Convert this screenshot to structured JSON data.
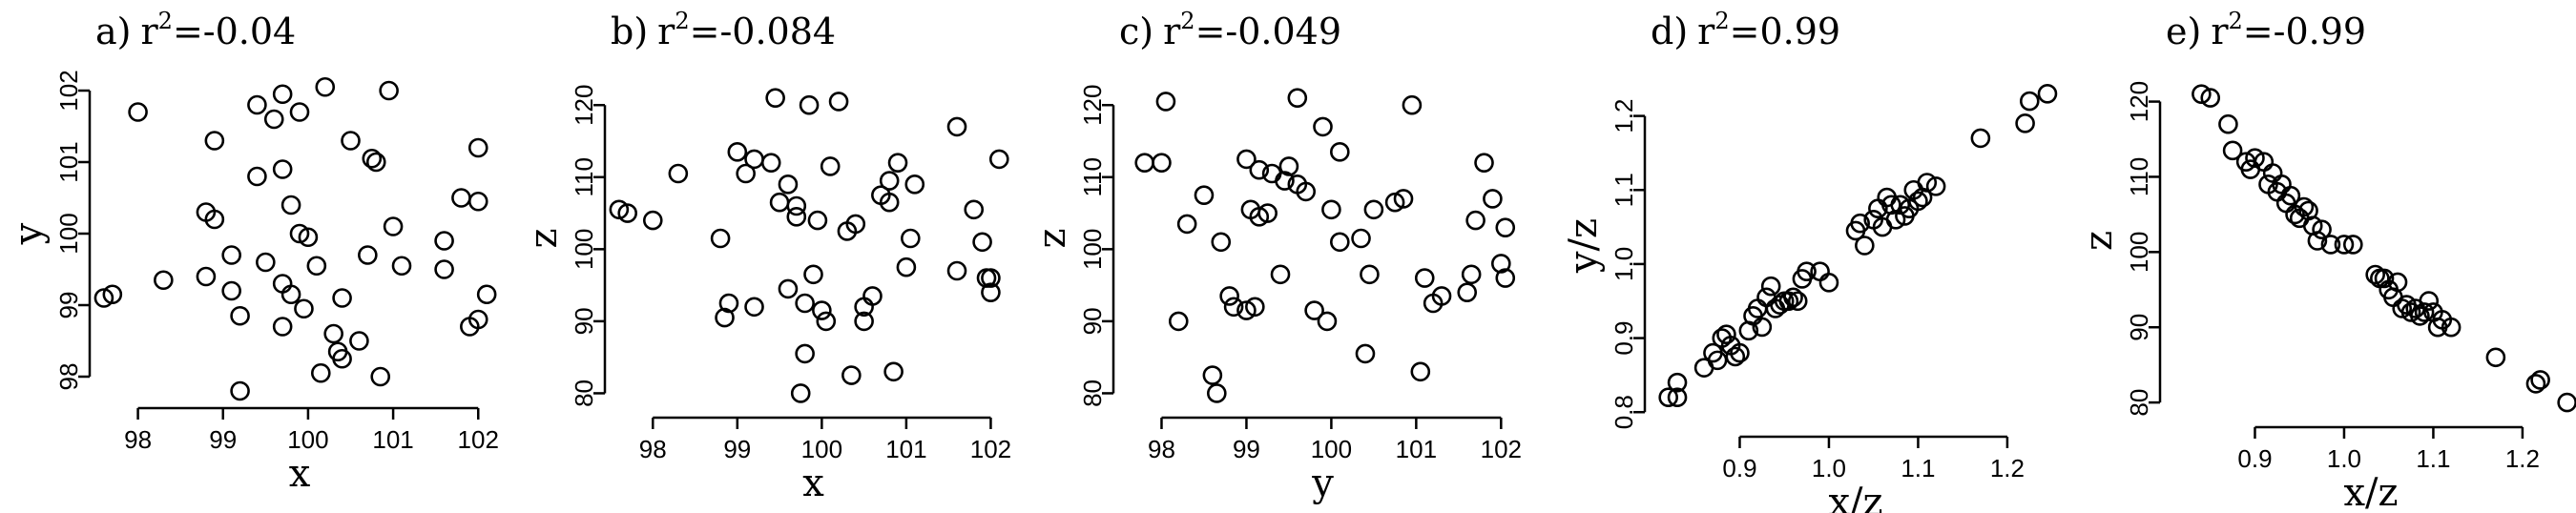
{
  "figure_text": {
    "panels": [
      {
        "letter": "a)",
        "r_label": "r",
        "sup": "2",
        "r_value": "=-0.04"
      },
      {
        "letter": "b)",
        "r_label": "r",
        "sup": "2",
        "r_value": "=-0.084"
      },
      {
        "letter": "c)",
        "r_label": "r",
        "sup": "2",
        "r_value": "=-0.049"
      },
      {
        "letter": "d)",
        "r_label": "r",
        "sup": "2",
        "r_value": "=0.99"
      },
      {
        "letter": "e)",
        "r_label": "r",
        "sup": "2",
        "r_value": "=-0.99"
      }
    ]
  },
  "chart_data": [
    {
      "type": "scatter",
      "title": "a) r2=-0.04",
      "xlabel": "x",
      "ylabel": "y",
      "xlim": [
        97.5,
        102.3
      ],
      "ylim": [
        97.8,
        102.2
      ],
      "xticks": [
        "98",
        "99",
        "100",
        "101",
        "102"
      ],
      "yticks": [
        "98",
        "99",
        "100",
        "101",
        "102"
      ],
      "points": [
        [
          97.6,
          99.1
        ],
        [
          97.7,
          99.15
        ],
        [
          98.0,
          101.7
        ],
        [
          98.3,
          99.35
        ],
        [
          98.8,
          99.4
        ],
        [
          98.8,
          100.3
        ],
        [
          98.9,
          100.2
        ],
        [
          98.9,
          101.3
        ],
        [
          99.1,
          99.7
        ],
        [
          99.1,
          99.2
        ],
        [
          99.2,
          98.85
        ],
        [
          99.2,
          97.8
        ],
        [
          99.4,
          101.8
        ],
        [
          99.4,
          100.8
        ],
        [
          99.5,
          99.6
        ],
        [
          99.6,
          101.6
        ],
        [
          99.7,
          101.95
        ],
        [
          99.7,
          100.9
        ],
        [
          99.7,
          99.3
        ],
        [
          99.7,
          98.7
        ],
        [
          99.8,
          100.4
        ],
        [
          99.8,
          99.15
        ],
        [
          99.9,
          101.7
        ],
        [
          99.9,
          100.0
        ],
        [
          99.95,
          98.95
        ],
        [
          100.0,
          99.95
        ],
        [
          100.1,
          99.55
        ],
        [
          100.15,
          98.05
        ],
        [
          100.2,
          102.05
        ],
        [
          100.3,
          98.6
        ],
        [
          100.35,
          98.35
        ],
        [
          100.4,
          98.25
        ],
        [
          100.4,
          99.1
        ],
        [
          100.5,
          101.3
        ],
        [
          100.6,
          98.5
        ],
        [
          100.75,
          101.05
        ],
        [
          100.7,
          99.7
        ],
        [
          100.8,
          101.0
        ],
        [
          100.85,
          98.0
        ],
        [
          100.95,
          102.0
        ],
        [
          101.0,
          100.1
        ],
        [
          101.1,
          99.55
        ],
        [
          101.6,
          99.9
        ],
        [
          101.6,
          99.5
        ],
        [
          101.8,
          100.5
        ],
        [
          101.9,
          98.7
        ],
        [
          102.0,
          100.45
        ],
        [
          102.0,
          101.2
        ],
        [
          102.0,
          98.8
        ],
        [
          102.1,
          99.15
        ]
      ]
    },
    {
      "type": "scatter",
      "title": "b) r2=-0.084",
      "xlabel": "x",
      "ylabel": "z",
      "xlim": [
        97.5,
        102.3
      ],
      "ylim": [
        79,
        124
      ],
      "xticks": [
        "98",
        "99",
        "100",
        "101",
        "102"
      ],
      "yticks": [
        "80",
        "90",
        "100",
        "110",
        "120"
      ],
      "points": [
        [
          97.6,
          105.5
        ],
        [
          97.7,
          105.0
        ],
        [
          98.0,
          104.0
        ],
        [
          98.3,
          110.5
        ],
        [
          98.8,
          101.5
        ],
        [
          98.85,
          90.5
        ],
        [
          98.9,
          92.5
        ],
        [
          99.0,
          113.5
        ],
        [
          99.1,
          110.5
        ],
        [
          99.2,
          112.5
        ],
        [
          99.2,
          92.0
        ],
        [
          99.4,
          112.0
        ],
        [
          99.45,
          121.0
        ],
        [
          99.5,
          106.5
        ],
        [
          99.6,
          109.0
        ],
        [
          99.6,
          94.5
        ],
        [
          99.7,
          104.5
        ],
        [
          99.7,
          106.0
        ],
        [
          99.75,
          80.0
        ],
        [
          99.8,
          85.5
        ],
        [
          99.8,
          92.5
        ],
        [
          99.85,
          120.0
        ],
        [
          99.9,
          96.5
        ],
        [
          99.95,
          104.0
        ],
        [
          100.0,
          91.5
        ],
        [
          100.05,
          90.0
        ],
        [
          100.1,
          111.5
        ],
        [
          100.2,
          120.5
        ],
        [
          100.3,
          102.5
        ],
        [
          100.35,
          82.5
        ],
        [
          100.4,
          103.5
        ],
        [
          100.5,
          92.0
        ],
        [
          100.5,
          90.0
        ],
        [
          100.6,
          93.5
        ],
        [
          100.7,
          107.5
        ],
        [
          100.8,
          109.5
        ],
        [
          100.8,
          106.5
        ],
        [
          100.85,
          83.0
        ],
        [
          100.9,
          112.0
        ],
        [
          101.0,
          97.5
        ],
        [
          101.05,
          101.5
        ],
        [
          101.1,
          109.0
        ],
        [
          101.6,
          97.0
        ],
        [
          101.6,
          117.0
        ],
        [
          101.8,
          105.5
        ],
        [
          101.9,
          101.0
        ],
        [
          101.95,
          96.0
        ],
        [
          102.0,
          94.0
        ],
        [
          102.0,
          96.0
        ],
        [
          102.1,
          112.5
        ]
      ]
    },
    {
      "type": "scatter",
      "title": "c) r2=-0.049",
      "xlabel": "y",
      "ylabel": "z",
      "xlim": [
        97.5,
        102.3
      ],
      "ylim": [
        79,
        124
      ],
      "xticks": [
        "98",
        "99",
        "100",
        "101",
        "102"
      ],
      "yticks": [
        "80",
        "90",
        "100",
        "110",
        "120"
      ],
      "points": [
        [
          97.8,
          112.0
        ],
        [
          98.0,
          112.0
        ],
        [
          98.05,
          120.5
        ],
        [
          98.2,
          90.0
        ],
        [
          98.3,
          103.5
        ],
        [
          98.5,
          107.5
        ],
        [
          98.6,
          82.5
        ],
        [
          98.65,
          80.0
        ],
        [
          98.7,
          101.0
        ],
        [
          98.8,
          93.5
        ],
        [
          98.85,
          92.0
        ],
        [
          99.0,
          91.5
        ],
        [
          99.0,
          112.5
        ],
        [
          99.05,
          105.5
        ],
        [
          99.1,
          92.0
        ],
        [
          99.15,
          111.0
        ],
        [
          99.15,
          104.5
        ],
        [
          99.25,
          105.0
        ],
        [
          99.3,
          110.5
        ],
        [
          99.4,
          96.5
        ],
        [
          99.45,
          109.5
        ],
        [
          99.5,
          111.5
        ],
        [
          99.6,
          121.0
        ],
        [
          99.6,
          109.0
        ],
        [
          99.7,
          108.0
        ],
        [
          99.8,
          91.5
        ],
        [
          99.9,
          117.0
        ],
        [
          99.95,
          90.0
        ],
        [
          100.0,
          105.5
        ],
        [
          100.1,
          101.0
        ],
        [
          100.1,
          113.5
        ],
        [
          100.35,
          101.5
        ],
        [
          100.4,
          85.5
        ],
        [
          100.45,
          96.5
        ],
        [
          100.5,
          105.5
        ],
        [
          100.75,
          106.5
        ],
        [
          100.85,
          107.0
        ],
        [
          100.95,
          120.0
        ],
        [
          101.05,
          83.0
        ],
        [
          101.1,
          96.0
        ],
        [
          101.2,
          92.5
        ],
        [
          101.3,
          93.5
        ],
        [
          101.6,
          94.0
        ],
        [
          101.65,
          96.5
        ],
        [
          101.7,
          104.0
        ],
        [
          101.8,
          112.0
        ],
        [
          101.9,
          107.0
        ],
        [
          102.0,
          98.0
        ],
        [
          102.05,
          103.0
        ],
        [
          102.05,
          96.0
        ]
      ]
    },
    {
      "type": "scatter",
      "title": "d) r2=0.99",
      "xlabel": "x/z",
      "ylabel": "y/z",
      "xlim": [
        0.8,
        1.26
      ],
      "ylim": [
        0.79,
        1.26
      ],
      "xticks": [
        "0.9",
        "1.0",
        "1.1",
        "1.2"
      ],
      "yticks": [
        "0.8",
        "0.9",
        "1.0",
        "1.1",
        "1.2"
      ],
      "points": [
        [
          0.82,
          0.82
        ],
        [
          0.83,
          0.84
        ],
        [
          0.83,
          0.82
        ],
        [
          0.86,
          0.86
        ],
        [
          0.87,
          0.88
        ],
        [
          0.875,
          0.87
        ],
        [
          0.88,
          0.9
        ],
        [
          0.885,
          0.905
        ],
        [
          0.89,
          0.89
        ],
        [
          0.895,
          0.875
        ],
        [
          0.9,
          0.88
        ],
        [
          0.91,
          0.91
        ],
        [
          0.915,
          0.93
        ],
        [
          0.92,
          0.94
        ],
        [
          0.925,
          0.915
        ],
        [
          0.93,
          0.955
        ],
        [
          0.935,
          0.97
        ],
        [
          0.94,
          0.94
        ],
        [
          0.945,
          0.945
        ],
        [
          0.95,
          0.95
        ],
        [
          0.955,
          0.95
        ],
        [
          0.96,
          0.955
        ],
        [
          0.965,
          0.95
        ],
        [
          0.97,
          0.98
        ],
        [
          0.975,
          0.99
        ],
        [
          0.99,
          0.99
        ],
        [
          1.0,
          0.975
        ],
        [
          1.03,
          1.045
        ],
        [
          1.035,
          1.055
        ],
        [
          1.04,
          1.025
        ],
        [
          1.05,
          1.06
        ],
        [
          1.055,
          1.075
        ],
        [
          1.06,
          1.05
        ],
        [
          1.065,
          1.09
        ],
        [
          1.07,
          1.08
        ],
        [
          1.075,
          1.06
        ],
        [
          1.08,
          1.08
        ],
        [
          1.085,
          1.065
        ],
        [
          1.09,
          1.075
        ],
        [
          1.095,
          1.1
        ],
        [
          1.1,
          1.085
        ],
        [
          1.105,
          1.09
        ],
        [
          1.11,
          1.11
        ],
        [
          1.12,
          1.105
        ],
        [
          1.17,
          1.17
        ],
        [
          1.22,
          1.19
        ],
        [
          1.225,
          1.22
        ],
        [
          1.245,
          1.23
        ]
      ]
    },
    {
      "type": "scatter",
      "title": "e) r2=-0.99",
      "xlabel": "x/z",
      "ylabel": "z",
      "xlim": [
        0.8,
        1.26
      ],
      "ylim": [
        79,
        124
      ],
      "xticks": [
        "0.9",
        "1.0",
        "1.1",
        "1.2"
      ],
      "yticks": [
        "80",
        "90",
        "100",
        "110",
        "120"
      ],
      "points": [
        [
          0.84,
          121.0
        ],
        [
          0.85,
          120.5
        ],
        [
          0.87,
          117.0
        ],
        [
          0.875,
          113.5
        ],
        [
          0.89,
          112.0
        ],
        [
          0.895,
          111.0
        ],
        [
          0.9,
          112.5
        ],
        [
          0.91,
          112.0
        ],
        [
          0.915,
          109.0
        ],
        [
          0.92,
          110.5
        ],
        [
          0.925,
          108.0
        ],
        [
          0.93,
          109.0
        ],
        [
          0.935,
          106.5
        ],
        [
          0.94,
          107.5
        ],
        [
          0.945,
          105.0
        ],
        [
          0.95,
          104.5
        ],
        [
          0.955,
          106.0
        ],
        [
          0.96,
          105.5
        ],
        [
          0.965,
          103.5
        ],
        [
          0.97,
          101.5
        ],
        [
          0.975,
          103.0
        ],
        [
          0.985,
          101.0
        ],
        [
          1.0,
          101.0
        ],
        [
          1.01,
          101.0
        ],
        [
          1.035,
          97.0
        ],
        [
          1.04,
          96.5
        ],
        [
          1.045,
          96.5
        ],
        [
          1.05,
          95.0
        ],
        [
          1.055,
          94.0
        ],
        [
          1.06,
          96.0
        ],
        [
          1.065,
          92.5
        ],
        [
          1.07,
          93.0
        ],
        [
          1.075,
          92.0
        ],
        [
          1.08,
          92.5
        ],
        [
          1.085,
          91.5
        ],
        [
          1.09,
          92.0
        ],
        [
          1.095,
          93.5
        ],
        [
          1.1,
          92.0
        ],
        [
          1.105,
          90.0
        ],
        [
          1.11,
          91.0
        ],
        [
          1.12,
          90.0
        ],
        [
          1.17,
          86.0
        ],
        [
          1.215,
          82.5
        ],
        [
          1.22,
          83.0
        ],
        [
          1.25,
          80.0
        ]
      ]
    }
  ]
}
